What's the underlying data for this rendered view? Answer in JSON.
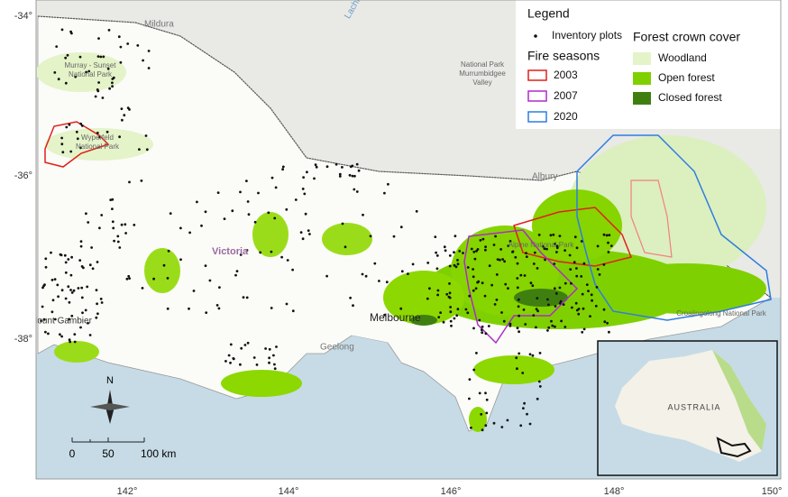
{
  "axes": {
    "lat": [
      "-34°",
      "-36°",
      "-38°"
    ],
    "lon": [
      "142°",
      "144°",
      "146°",
      "148°",
      "150°"
    ]
  },
  "legend": {
    "title": "Legend",
    "plots": "Inventory plots",
    "fire_title": "Fire seasons",
    "fire": [
      "2003",
      "2007",
      "2020"
    ],
    "cover_title": "Forest crown cover",
    "cover": [
      "Woodland",
      "Open forest",
      "Closed forest"
    ]
  },
  "map": {
    "places": [
      "Mildura",
      "Murray - Sunset",
      "National Park",
      "Wyperfeld",
      "National Park",
      "National Park",
      "Murrumbidgee",
      "Valley",
      "Lachlan",
      "Albury",
      "Victoria",
      "Alpine National Park",
      "Melbourne",
      "Geelong",
      "Mount Gambier",
      "Croajingolong National Park"
    ],
    "north": "N",
    "scale": [
      "0",
      "50",
      "100 km"
    ]
  },
  "inset": {
    "label": "AUSTRALIA"
  }
}
